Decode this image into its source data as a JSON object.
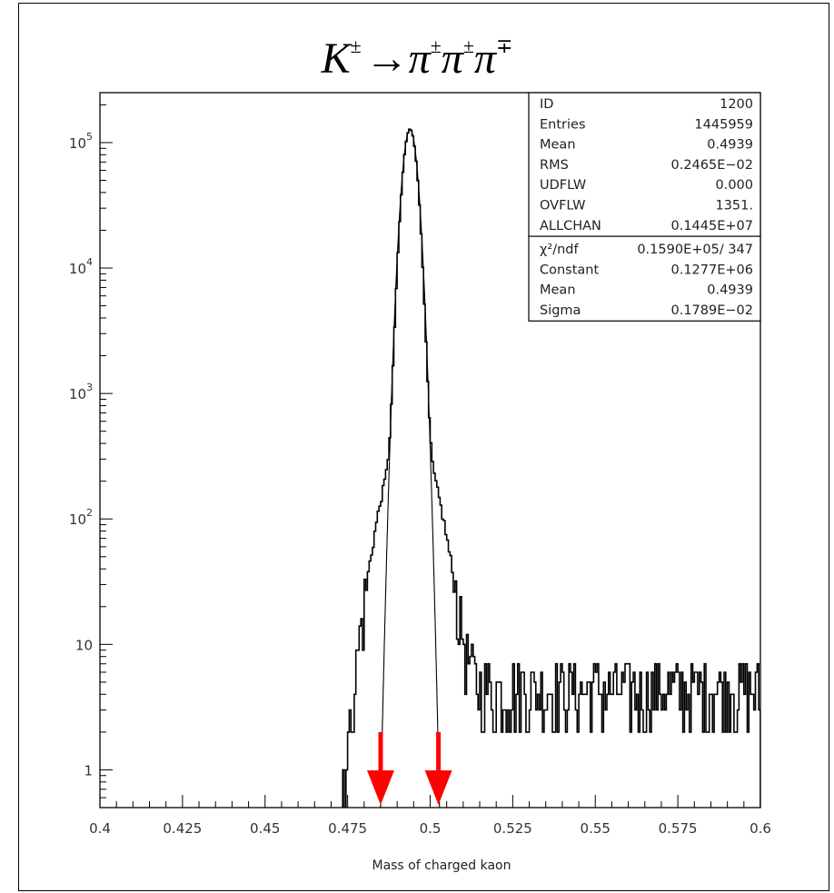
{
  "chart_data": {
    "type": "histogram",
    "title": {
      "base1": "K",
      "sup1": "±",
      "arrow": "→",
      "base2": "π",
      "sup2": "±",
      "base3": "π",
      "sup3": "±",
      "base4": "π",
      "sup4": "∓"
    },
    "xlabel": "Mass of charged kaon",
    "xlim": [
      0.4,
      0.6
    ],
    "ylim": [
      0.5,
      250000
    ],
    "yscale": "log",
    "x_ticks": [
      "0.4",
      "0.425",
      "0.45",
      "0.475",
      "0.5",
      "0.525",
      "0.55",
      "0.575",
      "0.6"
    ],
    "y_ticks": [
      {
        "value": 1,
        "base": "1",
        "exp": ""
      },
      {
        "value": 10,
        "base": "10",
        "exp": ""
      },
      {
        "value": 100,
        "base": "10",
        "exp": "2"
      },
      {
        "value": 1000,
        "base": "10",
        "exp": "3"
      },
      {
        "value": 10000,
        "base": "10",
        "exp": "4"
      },
      {
        "value": 100000,
        "base": "10",
        "exp": "5"
      }
    ],
    "stats_box": {
      "rows": [
        {
          "label": "ID",
          "value": "1200"
        },
        {
          "label": "Entries",
          "value": "1445959"
        },
        {
          "label": "Mean",
          "value": "0.4939"
        },
        {
          "label": "RMS",
          "value": "0.2465E−02"
        },
        {
          "label": "UDFLW",
          "value": "0.000"
        },
        {
          "label": "OVFLW",
          "value": "1351."
        },
        {
          "label": "ALLCHAN",
          "value": "0.1445E+07"
        }
      ],
      "fit_rows": [
        {
          "label": "χ²/ndf",
          "value": "0.1590E+05/  347"
        },
        {
          "label": "Constant",
          "value": "0.1277E+06"
        },
        {
          "label": "Mean",
          "value": "0.4939"
        },
        {
          "label": "Sigma",
          "value": "0.1789E−02"
        }
      ]
    },
    "histogram": {
      "bins": 400,
      "range": [
        0.4,
        0.6
      ],
      "peak_mean": 0.4939,
      "peak_constant": 127700,
      "core_sigma": 0.0017,
      "tail_sigma": 0.0055,
      "tail_fraction": 0.004
    },
    "fit_curve": {
      "type": "gaussian",
      "constant": 127700,
      "mean": 0.4939,
      "sigma": 0.001789
    },
    "arrows": [
      {
        "x": 0.485,
        "color": "#ff0000"
      },
      {
        "x": 0.5025,
        "color": "#ff0000"
      }
    ],
    "colors": {
      "histogram": "#000000",
      "arrow": "#ff0000"
    }
  }
}
